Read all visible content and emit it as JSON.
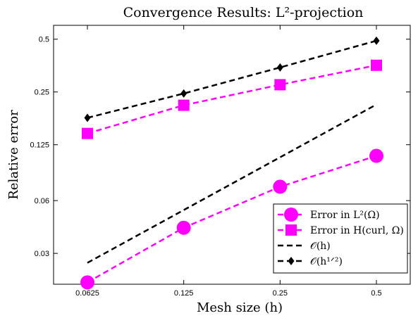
{
  "chart_data": {
    "type": "line",
    "title": "Convergence Results: L²-projection",
    "xlabel": "Mesh size (h)",
    "ylabel": "Relative error",
    "x_scale": "log",
    "y_scale": "log",
    "xlim": [
      0.0625,
      0.5
    ],
    "ylim": [
      0.02,
      0.6
    ],
    "x_ticks": [
      0.0625,
      0.125,
      0.25,
      0.5
    ],
    "x_tick_labels": [
      "0.0625",
      "0.125",
      "0.25",
      "0.5"
    ],
    "y_ticks": [
      0.03,
      0.06,
      0.125,
      0.25,
      0.5
    ],
    "y_tick_labels": [
      "0.03",
      "0.06",
      "0.125",
      "0.25",
      "0.5"
    ],
    "grid": false,
    "legend_position": "bottom-right",
    "x": [
      0.0625,
      0.125,
      0.25,
      0.5
    ],
    "series": [
      {
        "name": "Error in L²(Ω)",
        "values": [
          0.0205,
          0.042,
          0.072,
          0.108
        ],
        "color": "#ff00ff",
        "marker": "circle",
        "line": "dashed"
      },
      {
        "name": "Error in H(curl, Ω)",
        "values": [
          0.145,
          0.21,
          0.275,
          0.355
        ],
        "color": "#ff00ff",
        "marker": "square",
        "line": "dashed"
      },
      {
        "name": "𝒪(h)",
        "values": [
          0.0265,
          0.053,
          0.106,
          0.212
        ],
        "color": "#000000",
        "marker": "none",
        "line": "dashed"
      },
      {
        "name": "𝒪(h¹ᐟ²)",
        "values": [
          0.178,
          0.245,
          0.345,
          0.49
        ],
        "color": "#000000",
        "marker": "diamond",
        "line": "dashed"
      }
    ]
  }
}
